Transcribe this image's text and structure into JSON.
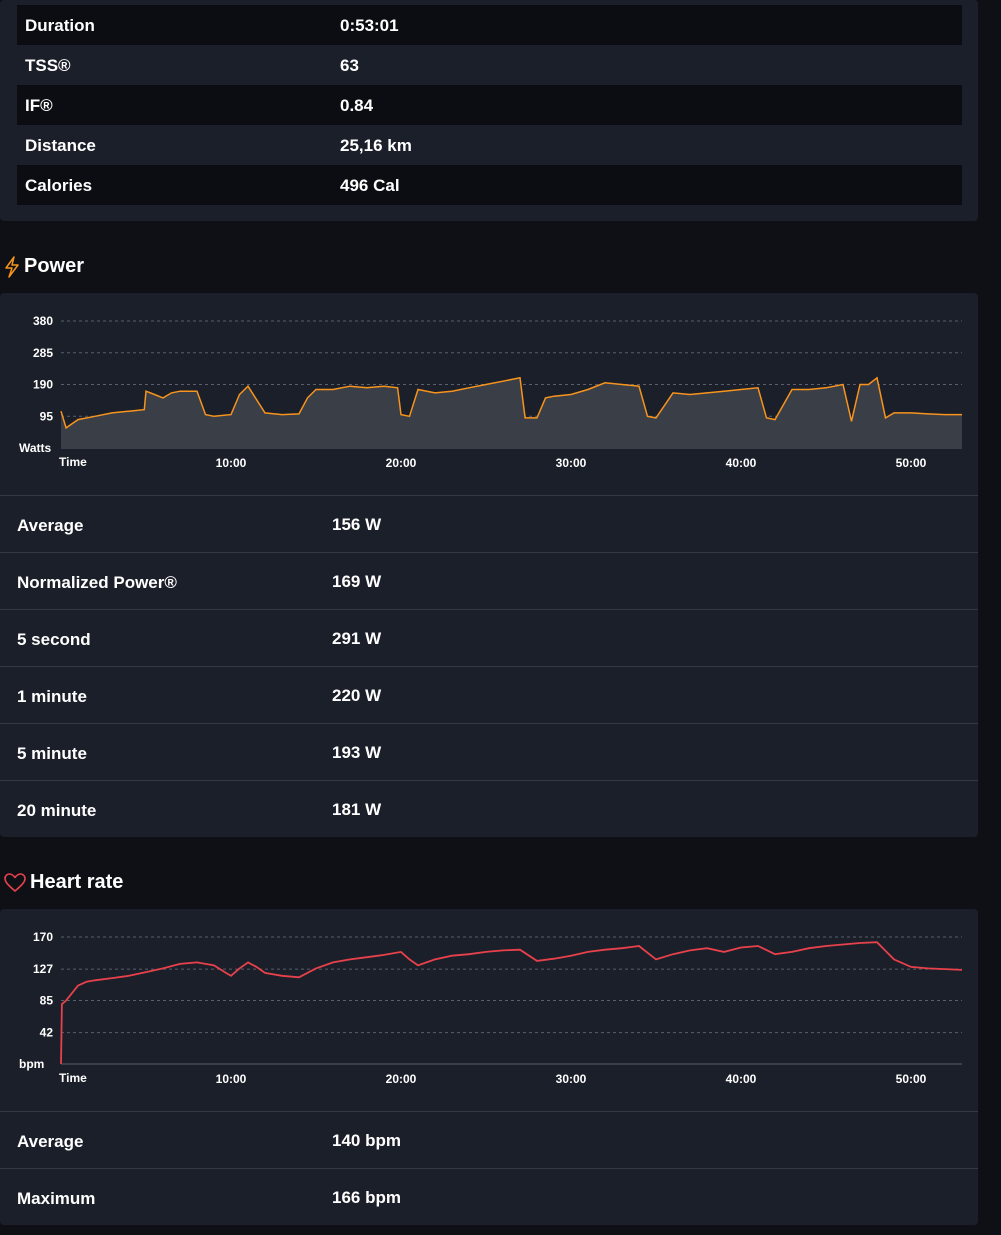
{
  "summary": {
    "rows": [
      {
        "label": "Duration",
        "value": "0:53:01"
      },
      {
        "label": "TSS®",
        "value": "63"
      },
      {
        "label": "IF®",
        "value": "0.84"
      },
      {
        "label": "Distance",
        "value": "25,16 km"
      },
      {
        "label": "Calories",
        "value": "496 Cal"
      }
    ]
  },
  "power": {
    "title": "Power",
    "icon": "lightning-icon",
    "accent": "#f7941d",
    "stats": [
      {
        "label": "Average",
        "value": "156 W"
      },
      {
        "label": "Normalized Power®",
        "value": "169 W"
      },
      {
        "label": "5 second",
        "value": "291 W"
      },
      {
        "label": "1 minute",
        "value": "220 W"
      },
      {
        "label": "5 minute",
        "value": "193 W"
      },
      {
        "label": "20 minute",
        "value": "181 W"
      }
    ]
  },
  "heart_rate": {
    "title": "Heart rate",
    "icon": "heart-icon",
    "accent": "#e8414b",
    "stats": [
      {
        "label": "Average",
        "value": "140 bpm"
      },
      {
        "label": "Maximum",
        "value": "166 bpm"
      }
    ]
  },
  "chart_data": [
    {
      "type": "area",
      "ylabel": "Watts",
      "xlabel": "Time",
      "x_unit": "minutes",
      "xlim": [
        0,
        53
      ],
      "ylim": [
        0,
        380
      ],
      "yticks": [
        95,
        190,
        285,
        380
      ],
      "xticks": [
        "10:00",
        "20:00",
        "30:00",
        "40:00",
        "50:00"
      ],
      "grid": true,
      "color": "#f7941d",
      "series": [
        {
          "x": [
            0,
            0.3,
            1,
            2,
            3,
            4,
            4.9,
            5,
            5.5,
            6,
            6.5,
            7,
            8,
            8.5,
            9,
            10,
            10.5,
            11,
            12,
            13,
            14,
            14.5,
            15,
            16,
            17,
            18,
            19,
            19.8,
            20,
            20.5,
            21,
            22,
            23,
            24,
            25,
            26,
            27,
            27.3,
            28,
            28.5,
            29,
            30,
            31,
            32,
            33,
            34,
            34.5,
            35,
            36,
            37,
            38,
            39,
            40,
            41,
            41.5,
            42,
            43,
            44,
            45,
            46,
            46.5,
            47,
            47.5,
            48,
            48.5,
            49,
            50,
            51,
            52,
            53
          ],
          "y": [
            110,
            60,
            85,
            95,
            105,
            110,
            115,
            170,
            160,
            150,
            165,
            170,
            170,
            100,
            95,
            100,
            160,
            185,
            105,
            100,
            102,
            150,
            175,
            175,
            185,
            180,
            185,
            180,
            100,
            95,
            175,
            165,
            170,
            180,
            190,
            200,
            210,
            90,
            90,
            150,
            155,
            160,
            175,
            195,
            190,
            185,
            95,
            90,
            165,
            160,
            165,
            170,
            175,
            180,
            90,
            85,
            175,
            175,
            180,
            190,
            80,
            190,
            190,
            210,
            90,
            105,
            105,
            102,
            100,
            100
          ]
        }
      ]
    },
    {
      "type": "line",
      "ylabel": "bpm",
      "xlabel": "Time",
      "x_unit": "minutes",
      "xlim": [
        0,
        53
      ],
      "ylim": [
        0,
        170
      ],
      "yticks": [
        42,
        85,
        127,
        170
      ],
      "xticks": [
        "10:00",
        "20:00",
        "30:00",
        "40:00",
        "50:00"
      ],
      "grid": true,
      "color": "#e8414b",
      "series": [
        {
          "x": [
            0,
            0.05,
            0.3,
            1,
            1.5,
            2,
            3,
            4,
            5,
            6,
            7,
            8,
            9,
            9.7,
            10,
            10.5,
            11,
            11.5,
            12,
            13,
            14,
            15,
            16,
            17,
            18,
            19,
            20,
            20.5,
            21,
            22,
            23,
            24,
            25,
            26,
            27,
            28,
            29,
            30,
            31,
            32,
            33,
            34,
            35,
            36,
            37,
            38,
            39,
            40,
            41,
            42,
            43,
            44,
            45,
            46,
            47,
            48,
            49,
            50,
            51,
            52,
            53
          ],
          "y": [
            0,
            80,
            85,
            105,
            110,
            112,
            115,
            118,
            123,
            128,
            134,
            136,
            132,
            122,
            118,
            128,
            136,
            130,
            122,
            118,
            116,
            128,
            136,
            140,
            143,
            146,
            150,
            140,
            132,
            140,
            145,
            147,
            150,
            152,
            153,
            138,
            141,
            145,
            150,
            153,
            155,
            158,
            140,
            147,
            152,
            155,
            150,
            156,
            158,
            147,
            150,
            155,
            158,
            160,
            162,
            163,
            140,
            130,
            128,
            127,
            126
          ]
        }
      ]
    }
  ]
}
